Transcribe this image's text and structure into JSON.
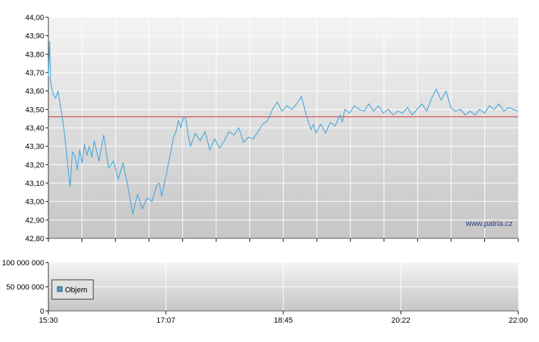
{
  "watermark": "www.patria.cz",
  "colors": {
    "price_line": "#4aa8d8",
    "reference_line": "#d02020",
    "grid": "#ffffff",
    "plot_bg_top": "#f4f4f4",
    "plot_bg_bottom": "#c6c6c6",
    "legend_swatch": "#4a9ed2"
  },
  "chart_data": [
    {
      "type": "line",
      "title": "",
      "xlabel": "",
      "ylabel": "",
      "ylim": [
        42.8,
        44.0
      ],
      "yticks": [
        "44,00",
        "43,90",
        "43,80",
        "43,70",
        "43,60",
        "43,50",
        "43,40",
        "43,30",
        "43,20",
        "43,10",
        "43,00",
        "42,90",
        "42,80"
      ],
      "reference_value": 43.46,
      "grid": true,
      "x_start": "15:30",
      "x_end": "22:00",
      "series": [
        {
          "time": [
            "15:30",
            "15:31",
            "15:32",
            "15:34",
            "15:36",
            "15:38",
            "15:40",
            "15:42",
            "15:44",
            "15:46",
            "15:48",
            "15:50",
            "15:52",
            "15:54",
            "15:56",
            "15:58",
            "16:00",
            "16:02",
            "16:04",
            "16:06",
            "16:08",
            "16:12",
            "16:16",
            "16:20",
            "16:24",
            "16:28",
            "16:32",
            "16:36",
            "16:40",
            "16:44",
            "16:48",
            "16:52",
            "16:56",
            "17:00",
            "17:02",
            "17:04",
            "17:06",
            "17:08",
            "17:10",
            "17:12",
            "17:14",
            "17:16",
            "17:18",
            "17:20",
            "17:22",
            "17:24",
            "17:26",
            "17:28",
            "17:32",
            "17:36",
            "17:40",
            "17:44",
            "17:48",
            "17:52",
            "17:56",
            "18:00",
            "18:04",
            "18:08",
            "18:12",
            "18:16",
            "18:20",
            "18:24",
            "18:28",
            "18:32",
            "18:36",
            "18:40",
            "18:44",
            "18:48",
            "18:52",
            "18:56",
            "19:00",
            "19:04",
            "19:08",
            "19:10",
            "19:12",
            "19:16",
            "19:20",
            "19:24",
            "19:28",
            "19:32",
            "19:34",
            "19:36",
            "19:40",
            "19:44",
            "19:48",
            "19:52",
            "19:56",
            "20:00",
            "20:04",
            "20:08",
            "20:12",
            "20:16",
            "20:20",
            "20:24",
            "20:28",
            "20:32",
            "20:36",
            "20:40",
            "20:44",
            "20:48",
            "20:52",
            "20:56",
            "21:00",
            "21:04",
            "21:08",
            "21:12",
            "21:16",
            "21:20",
            "21:24",
            "21:28",
            "21:32",
            "21:36",
            "21:40",
            "21:44",
            "21:48",
            "21:52",
            "21:56",
            "22:00"
          ],
          "values": [
            43.68,
            43.87,
            43.64,
            43.58,
            43.56,
            43.6,
            43.52,
            43.44,
            43.33,
            43.2,
            43.08,
            43.27,
            43.25,
            43.17,
            43.28,
            43.21,
            43.31,
            43.25,
            43.3,
            43.24,
            43.33,
            43.22,
            43.36,
            43.18,
            43.22,
            43.12,
            43.21,
            43.08,
            42.93,
            43.04,
            42.96,
            43.02,
            43.0,
            43.09,
            43.1,
            43.03,
            43.09,
            43.15,
            43.22,
            43.28,
            43.35,
            43.38,
            43.44,
            43.4,
            43.46,
            43.45,
            43.36,
            43.3,
            43.37,
            43.33,
            43.38,
            43.28,
            43.34,
            43.29,
            43.33,
            43.38,
            43.36,
            43.4,
            43.32,
            43.35,
            43.34,
            43.38,
            43.42,
            43.44,
            43.5,
            43.54,
            43.49,
            43.52,
            43.5,
            43.53,
            43.57,
            43.47,
            43.39,
            43.42,
            43.37,
            43.42,
            43.37,
            43.43,
            43.41,
            43.47,
            43.43,
            43.5,
            43.48,
            43.52,
            43.5,
            43.49,
            43.53,
            43.49,
            43.52,
            43.48,
            43.5,
            43.47,
            43.49,
            43.48,
            43.51,
            43.47,
            43.5,
            43.53,
            43.49,
            43.56,
            43.61,
            43.55,
            43.6,
            43.51,
            43.49,
            43.5,
            43.47,
            43.49,
            43.47,
            43.5,
            43.48,
            43.52,
            43.5,
            43.53,
            43.49,
            43.51,
            43.5,
            43.49
          ]
        }
      ]
    },
    {
      "type": "bar",
      "title": "",
      "xlabel": "",
      "ylabel": "",
      "ylim": [
        0,
        100000000
      ],
      "yticks": [
        "100 000 000",
        "50 000 000",
        "0"
      ],
      "xticks": [
        "15:30",
        "17:07",
        "18:45",
        "20:22",
        "22:00"
      ],
      "legend": {
        "position": "bottom-left",
        "label": "Objem"
      },
      "grid": true,
      "series": [
        {
          "name": "Objem",
          "values": []
        }
      ]
    }
  ]
}
